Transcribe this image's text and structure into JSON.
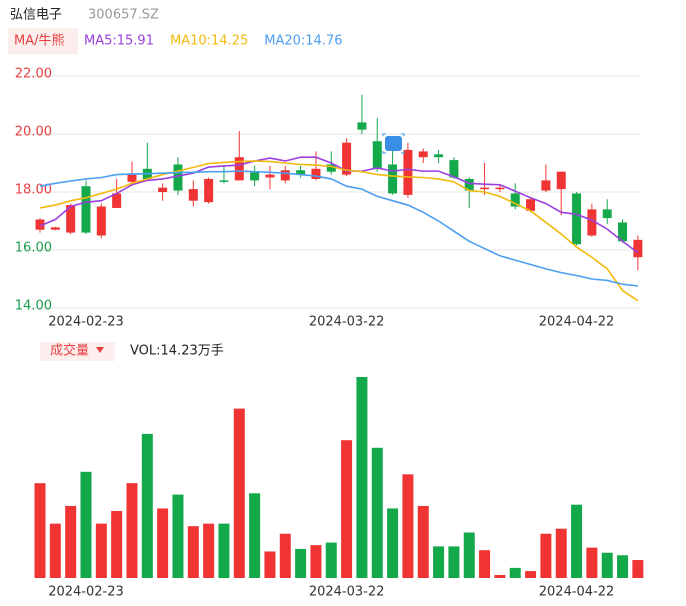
{
  "chart_data": {
    "type": "candlestick",
    "title": "弘信电子",
    "subtitle": "300657.SZ",
    "ma_button": "MA/牛熊",
    "up_color": "#f03434",
    "down_color": "#13a84a",
    "categories": [
      null,
      null,
      null,
      "2024-02-23",
      null,
      null,
      null,
      null,
      null,
      null,
      null,
      null,
      null,
      null,
      null,
      null,
      null,
      null,
      null,
      null,
      "2024-03-22",
      null,
      null,
      null,
      null,
      null,
      null,
      null,
      null,
      null,
      null,
      null,
      null,
      null,
      null,
      "2024-04-22",
      null,
      null,
      null,
      null
    ],
    "open": [
      16.7,
      16.7,
      16.6,
      18.2,
      16.5,
      17.45,
      18.35,
      18.8,
      18.0,
      18.95,
      17.7,
      17.65,
      18.4,
      18.4,
      18.7,
      18.5,
      18.4,
      18.75,
      18.45,
      18.95,
      18.6,
      20.4,
      19.75,
      18.95,
      17.9,
      19.2,
      19.3,
      19.1,
      18.45,
      18.1,
      18.1,
      17.95,
      17.35,
      18.05,
      18.1,
      17.95,
      16.5,
      17.4,
      16.95,
      15.75
    ],
    "close": [
      17.05,
      16.78,
      17.55,
      16.6,
      17.5,
      17.95,
      18.6,
      18.45,
      18.15,
      18.05,
      18.1,
      18.45,
      18.35,
      19.2,
      18.4,
      18.6,
      18.75,
      18.6,
      18.8,
      18.7,
      19.7,
      20.15,
      18.8,
      17.95,
      19.45,
      19.4,
      19.2,
      18.5,
      18.05,
      18.15,
      18.15,
      17.5,
      17.75,
      18.4,
      18.7,
      16.2,
      17.4,
      17.1,
      16.3,
      16.35
    ],
    "high": [
      17.1,
      16.8,
      17.6,
      18.4,
      17.6,
      18.45,
      19.05,
      19.7,
      18.3,
      19.2,
      18.4,
      18.5,
      18.9,
      20.1,
      18.9,
      18.9,
      18.9,
      18.9,
      19.4,
      19.4,
      19.85,
      21.35,
      20.55,
      19.5,
      19.7,
      19.5,
      19.45,
      19.2,
      18.5,
      19.0,
      18.25,
      18.3,
      17.8,
      18.95,
      18.7,
      18.0,
      17.6,
      17.75,
      17.05,
      16.5
    ],
    "low": [
      16.6,
      16.68,
      16.55,
      16.55,
      16.4,
      17.45,
      18.3,
      18.4,
      17.7,
      17.9,
      17.5,
      17.6,
      18.3,
      18.4,
      18.2,
      18.1,
      18.3,
      18.5,
      18.4,
      18.6,
      18.55,
      20.0,
      18.7,
      17.9,
      17.8,
      19.0,
      19.0,
      18.45,
      17.45,
      17.9,
      18.0,
      17.4,
      17.3,
      18.0,
      17.2,
      16.15,
      16.45,
      16.9,
      16.25,
      15.3
    ],
    "ma": [
      {
        "name": "MA5:15.91",
        "color": "#9b3fe0",
        "values": [
          16.83,
          17.05,
          17.5,
          17.65,
          17.7,
          17.95,
          18.25,
          18.4,
          18.45,
          18.55,
          18.65,
          18.86,
          18.9,
          18.93,
          19.07,
          19.17,
          19.07,
          19.2,
          19.2,
          19.0,
          18.72,
          18.72,
          18.83,
          18.72,
          18.78,
          18.72,
          18.72,
          18.52,
          18.3,
          18.27,
          18.25,
          18.03,
          17.8,
          17.6,
          17.3,
          17.23,
          17.03,
          16.72,
          16.3,
          15.91
        ]
      },
      {
        "name": "MA10:14.25",
        "color": "#f2b90f",
        "values": [
          17.45,
          17.55,
          17.7,
          17.8,
          17.95,
          18.1,
          18.3,
          18.45,
          18.6,
          18.72,
          18.85,
          18.98,
          19.02,
          19.05,
          19.07,
          19.05,
          19.0,
          18.95,
          18.93,
          18.88,
          18.75,
          18.7,
          18.6,
          18.55,
          18.52,
          18.5,
          18.45,
          18.35,
          18.05,
          18.0,
          17.85,
          17.6,
          17.35,
          16.95,
          16.55,
          16.1,
          15.75,
          15.35,
          14.6,
          14.25
        ]
      },
      {
        "name": "MA20:14.76",
        "color": "#4c9ff0",
        "values": [
          18.2,
          18.3,
          18.38,
          18.45,
          18.5,
          18.6,
          18.62,
          18.63,
          18.65,
          18.67,
          18.68,
          18.7,
          18.7,
          18.72,
          18.7,
          18.68,
          18.65,
          18.6,
          18.55,
          18.45,
          18.2,
          18.1,
          17.85,
          17.7,
          17.55,
          17.3,
          17.0,
          16.65,
          16.3,
          16.05,
          15.8,
          15.65,
          15.5,
          15.35,
          15.22,
          15.12,
          15.0,
          14.95,
          14.82,
          14.76
        ]
      }
    ],
    "ylim": [
      14,
      22
    ],
    "yticks": [
      {
        "value": 22,
        "label": "22.00"
      },
      {
        "value": 20,
        "label": "20.00"
      },
      {
        "value": 18,
        "label": "18.00"
      },
      {
        "value": 16,
        "label": "16.00"
      },
      {
        "value": 14,
        "label": "14.00"
      }
    ],
    "ytick_colors": [
      "#e84040",
      "#e84040",
      "#e84040",
      "#1a9d4b",
      "#1a9d4b"
    ],
    "grid": true,
    "volume": {
      "button": "成交量",
      "label": "VOL:14.23万手",
      "values": [
        75,
        43,
        57,
        84,
        43,
        53,
        75,
        114,
        55,
        66,
        41,
        43,
        43,
        134,
        67,
        21,
        35,
        23,
        26,
        28,
        109,
        159,
        103,
        55,
        82,
        57,
        25,
        25,
        36,
        22,
        2.4,
        8,
        5.5,
        35,
        39,
        58,
        24,
        20,
        18,
        14.23
      ]
    }
  }
}
